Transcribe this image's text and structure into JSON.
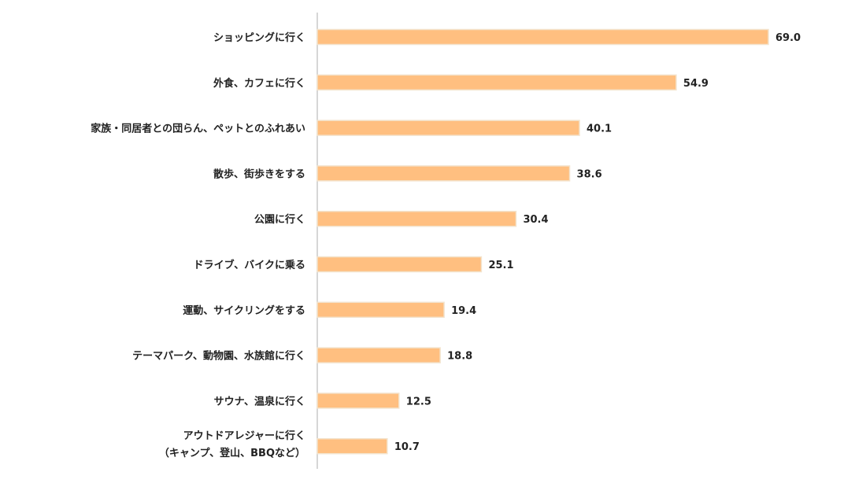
{
  "chart_data": {
    "type": "bar",
    "orientation": "horizontal",
    "categories": [
      [
        "ショッピングに行く"
      ],
      [
        "外食、カフェに行く"
      ],
      [
        "家族・同居者との団らん、ペットとのふれあい"
      ],
      [
        "散歩、街歩きをする"
      ],
      [
        "公園に行く"
      ],
      [
        "ドライブ、バイクに乗る"
      ],
      [
        "運動、サイクリングをする"
      ],
      [
        "テーマパーク、動物園、水族館に行く"
      ],
      [
        "サウナ、温泉に行く"
      ],
      [
        "アウトドアレジャーに行く",
        "（キャンプ、登山、BBQなど）"
      ]
    ],
    "values": [
      69.0,
      54.9,
      40.1,
      38.6,
      30.4,
      25.1,
      19.4,
      18.8,
      12.5,
      10.7
    ],
    "value_labels": [
      "69.0",
      "54.9",
      "40.1",
      "38.6",
      "30.4",
      "25.1",
      "19.4",
      "18.8",
      "12.5",
      "10.7"
    ],
    "xlim": [
      0,
      69.0
    ],
    "grid": false,
    "colors": {
      "bar": "#FFBF80",
      "bar_edge": "#F3E3CC",
      "axis": "#C8C8C8",
      "text": "#222222"
    }
  }
}
